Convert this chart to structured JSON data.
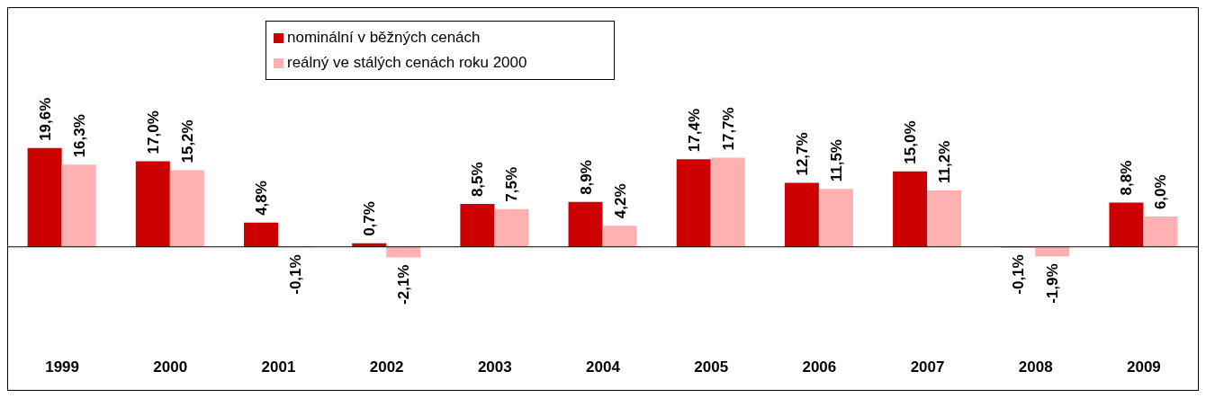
{
  "chart_data": {
    "type": "bar",
    "categories": [
      "1999",
      "2000",
      "2001",
      "2002",
      "2003",
      "2004",
      "2005",
      "2006",
      "2007",
      "2008",
      "2009"
    ],
    "series": [
      {
        "name": "nominální v běžných cenách",
        "color": "#cc0000",
        "values": [
          19.6,
          17.0,
          4.8,
          0.7,
          8.5,
          8.9,
          17.4,
          12.7,
          15.0,
          -0.1,
          8.8
        ],
        "value_labels": [
          "19,6%",
          "17,0%",
          "4,8%",
          "0,7%",
          "8,5%",
          "8,9%",
          "17,4%",
          "12,7%",
          "15,0%",
          "-0,1%",
          "8,8%"
        ]
      },
      {
        "name": "reálný ve stálých cenách roku 2000",
        "color": "#ffb0b0",
        "values": [
          16.3,
          15.2,
          -0.1,
          -2.1,
          7.5,
          4.2,
          17.7,
          11.5,
          11.2,
          -1.9,
          6.0
        ],
        "value_labels": [
          "16,3%",
          "15,2%",
          "-0,1%",
          "-2,1%",
          "7,5%",
          "4,2%",
          "17,7%",
          "11,5%",
          "11,2%",
          "-1,9%",
          "6,0%"
        ]
      }
    ],
    "legend": "top"
  }
}
